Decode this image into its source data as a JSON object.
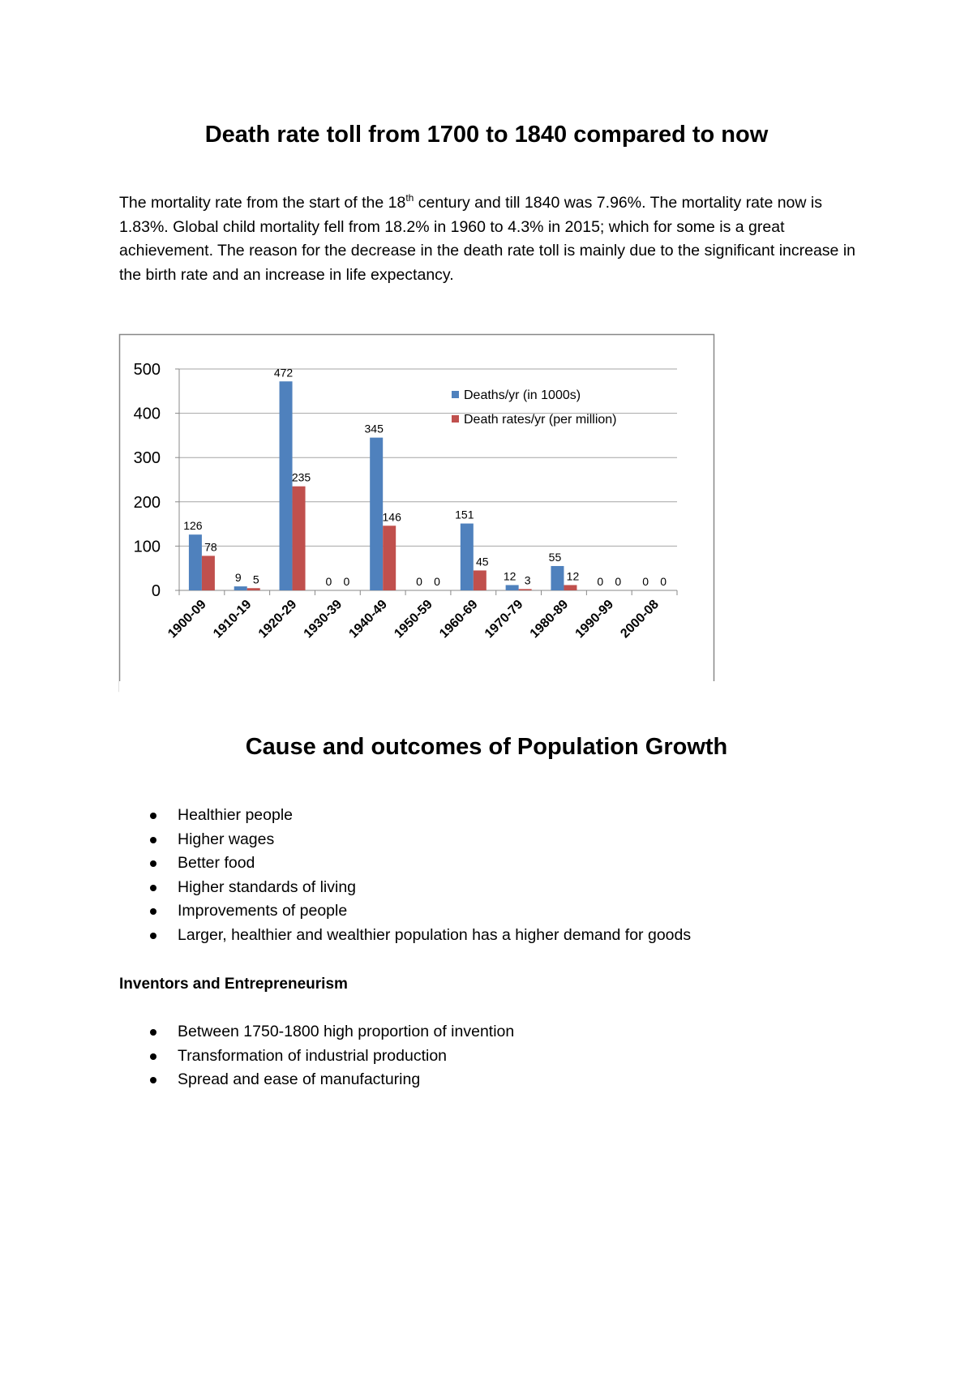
{
  "title": "Death rate toll from 1700 to 1840 compared to now",
  "paragraph": {
    "before": "The mortality rate from the start of the 18",
    "superscript": "th",
    "after": " century and till 1840 was 7.96%. The mortality rate now is 1.83%. Global child mortality fell from 18.2% in 1960 to 4.3% in 2015; which for some is a great achievement. The reason for the decrease in the death rate toll is mainly due to the significant increase in the birth rate and an increase in life expectancy."
  },
  "chart_data": {
    "type": "bar",
    "categories": [
      "1900-09",
      "1910-19",
      "1920-29",
      "1930-39",
      "1940-49",
      "1950-59",
      "1960-69",
      "1970-79",
      "1980-89",
      "1990-99",
      "2000-08"
    ],
    "series": [
      {
        "name": "Deaths/yr (in 1000s)",
        "color": "#4f81bd",
        "values": [
          126,
          9,
          472,
          0,
          345,
          0,
          151,
          12,
          55,
          0,
          0
        ]
      },
      {
        "name": "Death rates/yr (per million)",
        "color": "#c0504d",
        "values": [
          78,
          5,
          235,
          0,
          146,
          0,
          45,
          3,
          12,
          0,
          0
        ]
      }
    ],
    "ylim": [
      0,
      500
    ],
    "yticks": [
      0,
      100,
      200,
      300,
      400,
      500
    ],
    "grid": true,
    "legend": "upper right",
    "data_labels": true
  },
  "section_title": "Cause and outcomes of Population Growth",
  "causes": [
    "Healthier people",
    "Higher wages",
    "Better food",
    "Higher standards of living",
    "Improvements of people",
    "Larger, healthier and wealthier population has a higher demand for goods"
  ],
  "subheading": "Inventors and Entrepreneurism",
  "inventions": [
    "Between 1750-1800 high proportion of invention",
    "Transformation of industrial production",
    "Spread and ease of manufacturing"
  ]
}
